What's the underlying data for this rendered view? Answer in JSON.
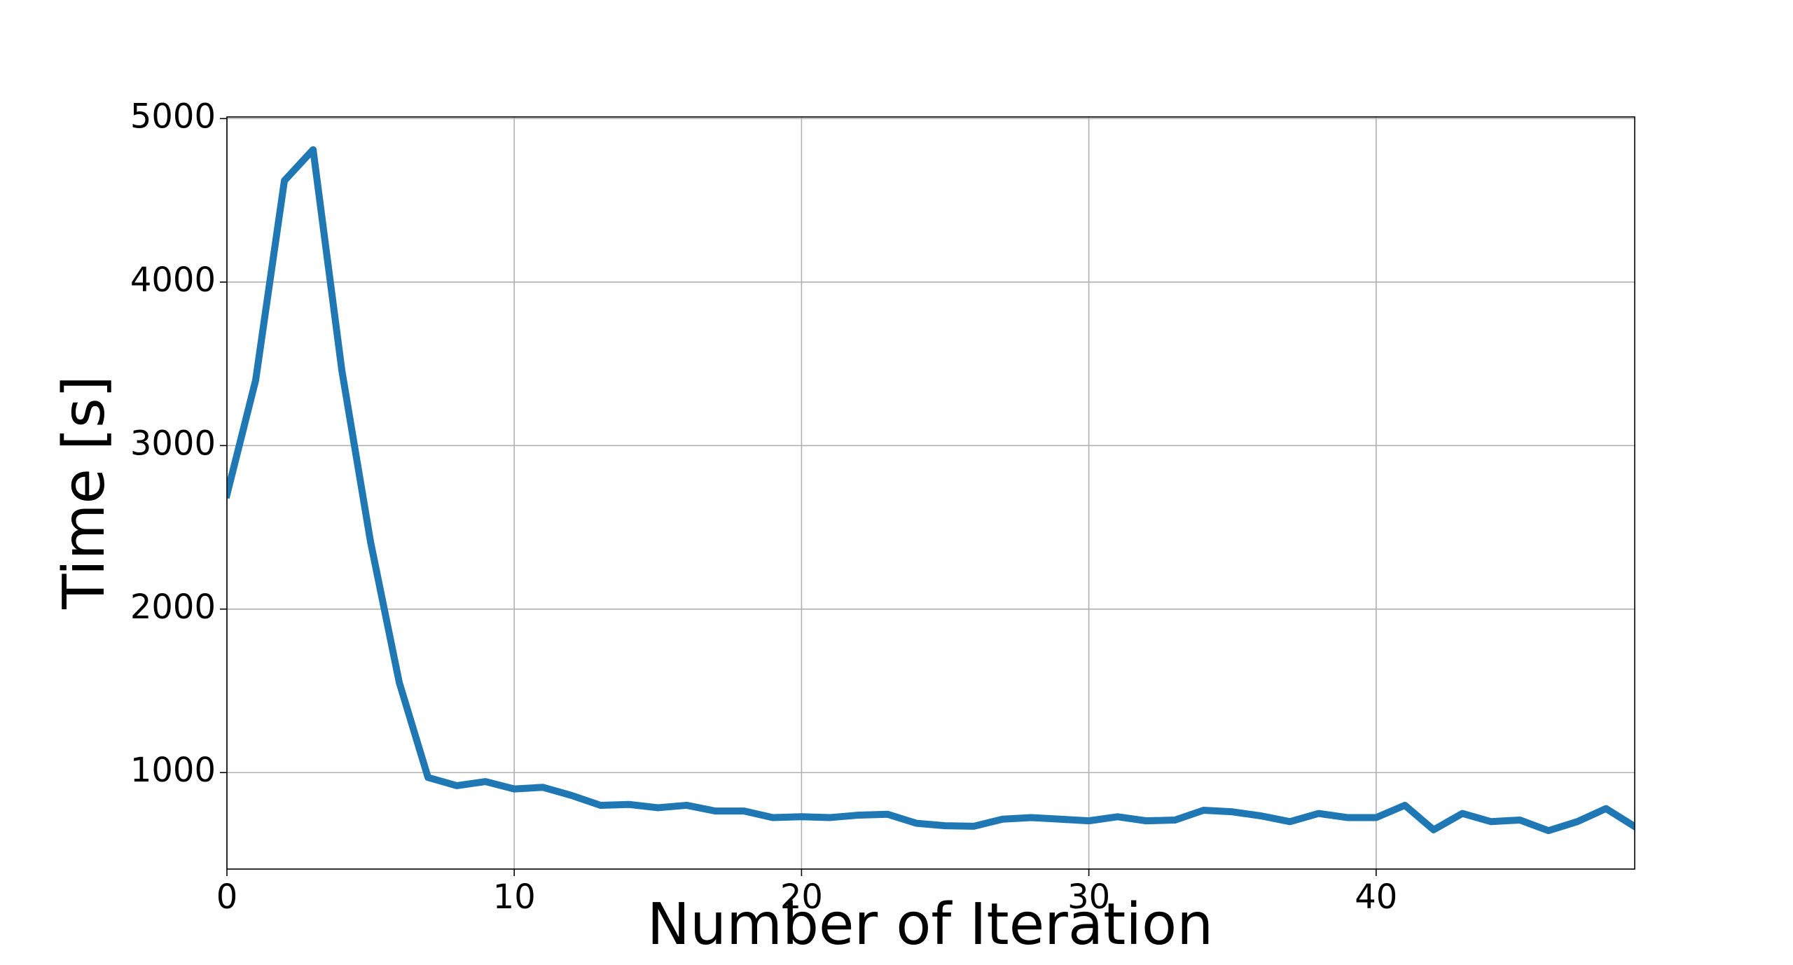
{
  "chart_data": {
    "type": "line",
    "x_label": "Number of Iteration",
    "y_label": "Time [s]",
    "x": [
      0,
      1,
      2,
      3,
      4,
      5,
      6,
      7,
      8,
      9,
      10,
      11,
      12,
      13,
      14,
      15,
      16,
      17,
      18,
      19,
      20,
      21,
      22,
      23,
      24,
      25,
      26,
      27,
      28,
      29,
      30,
      31,
      32,
      33,
      34,
      35,
      36,
      37,
      38,
      39,
      40,
      41,
      42,
      43,
      44,
      45,
      46,
      47,
      48,
      49
    ],
    "series": [
      {
        "color": "#1f77b4",
        "values": [
          2700,
          3400,
          4620,
          4810,
          3460,
          2410,
          1550,
          970,
          920,
          945,
          900,
          910,
          860,
          800,
          805,
          785,
          800,
          765,
          765,
          725,
          730,
          725,
          740,
          745,
          690,
          675,
          672,
          715,
          725,
          715,
          705,
          730,
          705,
          710,
          770,
          760,
          735,
          700,
          750,
          725,
          725,
          800,
          650,
          750,
          700,
          710,
          645,
          700,
          780,
          670
        ]
      }
    ],
    "xlim": [
      0,
      49
    ],
    "ylim": [
      410,
      5010
    ],
    "xticks": [
      0,
      10,
      20,
      30,
      40
    ],
    "yticks": [
      1000,
      2000,
      3000,
      4000,
      5000
    ],
    "grid": true
  }
}
